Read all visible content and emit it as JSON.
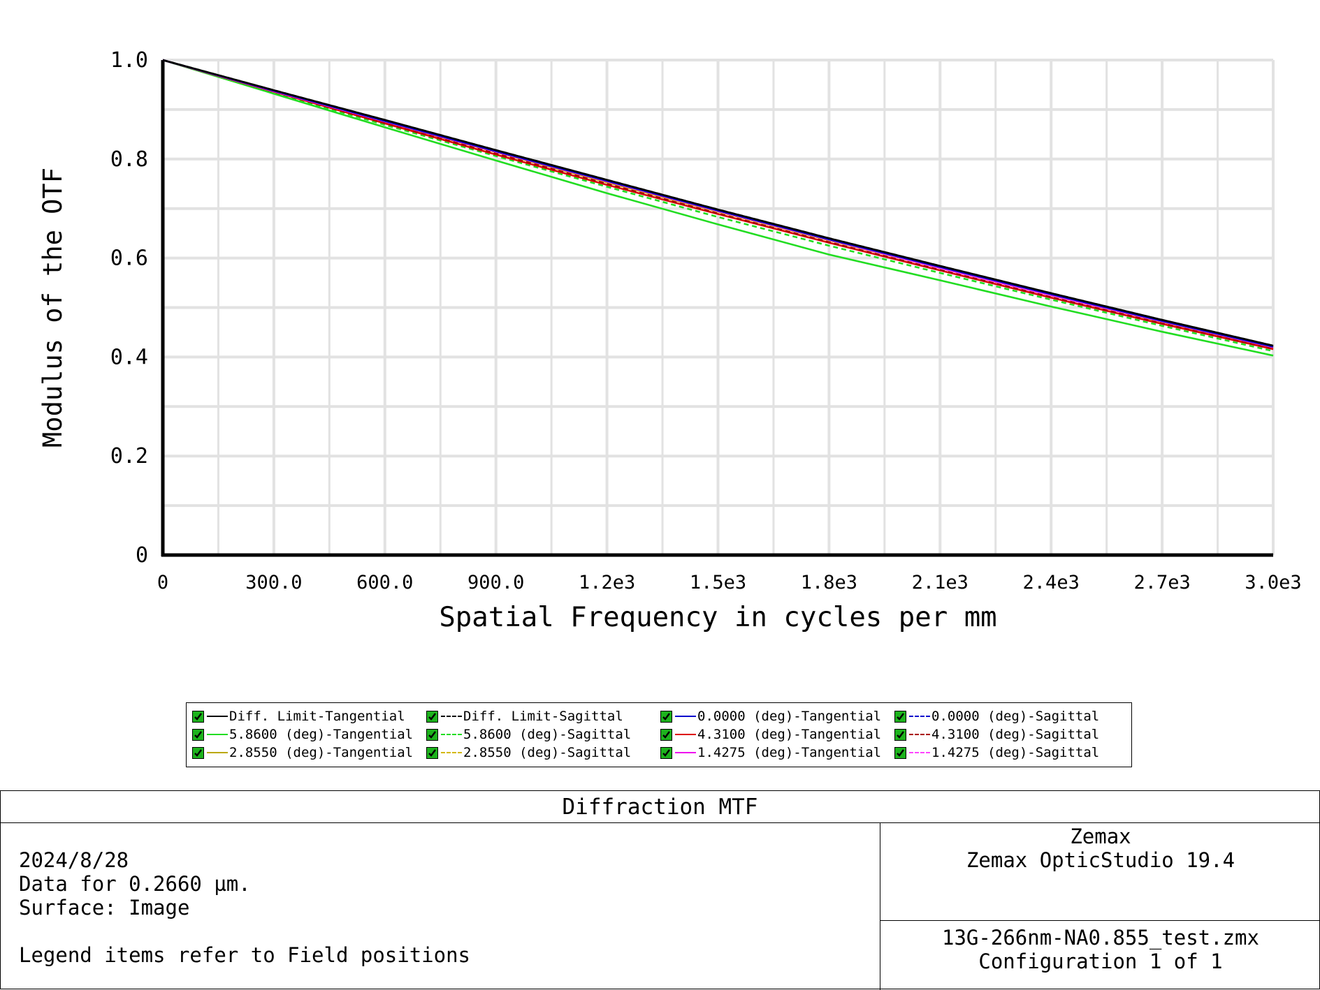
{
  "chart_data": {
    "type": "line",
    "title": "",
    "xlabel": "Spatial Frequency in cycles per mm",
    "ylabel": "Modulus of the OTF",
    "xlim": [
      0,
      3000
    ],
    "ylim": [
      0,
      1.0
    ],
    "x_ticks": [
      "0",
      "300.0",
      "600.0",
      "900.0",
      "1.2e3",
      "1.5e3",
      "1.8e3",
      "2.1e3",
      "2.4e3",
      "2.7e3",
      "3.0e3"
    ],
    "y_ticks": [
      "0",
      "0.2",
      "0.4",
      "0.6",
      "0.8",
      "1.0"
    ],
    "grid": true,
    "legend_position": "bottom",
    "x": [
      0,
      300,
      600,
      900,
      1200,
      1500,
      1800,
      2100,
      2400,
      2700,
      3000
    ],
    "series": [
      {
        "name": "Diff. Limit-Tangential",
        "color": "#000000",
        "dash": "solid",
        "values": [
          1.0,
          0.939,
          0.879,
          0.818,
          0.758,
          0.698,
          0.64,
          0.584,
          0.529,
          0.475,
          0.423
        ]
      },
      {
        "name": "Diff. Limit-Sagittal",
        "color": "#000000",
        "dash": "dashed",
        "values": [
          1.0,
          0.939,
          0.879,
          0.818,
          0.758,
          0.698,
          0.64,
          0.584,
          0.529,
          0.475,
          0.423
        ]
      },
      {
        "name": "0.0000 (deg)-Tangential",
        "color": "#0000cc",
        "dash": "solid",
        "values": [
          1.0,
          0.938,
          0.877,
          0.816,
          0.756,
          0.696,
          0.638,
          0.582,
          0.527,
          0.473,
          0.421
        ]
      },
      {
        "name": "0.0000 (deg)-Sagittal",
        "color": "#0000cc",
        "dash": "dashed",
        "values": [
          1.0,
          0.938,
          0.877,
          0.816,
          0.756,
          0.696,
          0.638,
          0.582,
          0.527,
          0.473,
          0.421
        ]
      },
      {
        "name": "5.8600 (deg)-Tangential",
        "color": "#22dd22",
        "dash": "solid",
        "values": [
          1.0,
          0.932,
          0.864,
          0.797,
          0.731,
          0.668,
          0.607,
          0.555,
          0.502,
          0.451,
          0.403
        ]
      },
      {
        "name": "5.8600 (deg)-Sagittal",
        "color": "#22dd22",
        "dash": "dashed",
        "values": [
          1.0,
          0.934,
          0.869,
          0.806,
          0.744,
          0.683,
          0.625,
          0.57,
          0.516,
          0.463,
          0.412
        ]
      },
      {
        "name": "4.3100 (deg)-Tangential",
        "color": "#dd0000",
        "dash": "solid",
        "values": [
          1.0,
          0.936,
          0.872,
          0.809,
          0.748,
          0.689,
          0.631,
          0.575,
          0.52,
          0.467,
          0.416
        ]
      },
      {
        "name": "4.3100 (deg)-Sagittal",
        "color": "#aa0000",
        "dash": "dashed",
        "values": [
          1.0,
          0.936,
          0.873,
          0.811,
          0.75,
          0.69,
          0.632,
          0.576,
          0.521,
          0.468,
          0.417
        ]
      },
      {
        "name": "2.8550 (deg)-Tangential",
        "color": "#bba800",
        "dash": "solid",
        "values": [
          1.0,
          0.937,
          0.875,
          0.814,
          0.753,
          0.694,
          0.636,
          0.58,
          0.525,
          0.471,
          0.419
        ]
      },
      {
        "name": "2.8550 (deg)-Sagittal",
        "color": "#d4b800",
        "dash": "dashed",
        "values": [
          1.0,
          0.937,
          0.876,
          0.815,
          0.754,
          0.694,
          0.637,
          0.58,
          0.525,
          0.471,
          0.419
        ]
      },
      {
        "name": "1.4275 (deg)-Tangential",
        "color": "#ee00ee",
        "dash": "solid",
        "values": [
          1.0,
          0.937,
          0.876,
          0.815,
          0.755,
          0.695,
          0.637,
          0.58,
          0.525,
          0.472,
          0.42
        ]
      },
      {
        "name": "1.4275 (deg)-Sagittal",
        "color": "#ff44ff",
        "dash": "dashed",
        "values": [
          1.0,
          0.937,
          0.876,
          0.815,
          0.755,
          0.695,
          0.637,
          0.58,
          0.525,
          0.472,
          0.42
        ]
      }
    ],
    "legend_order": [
      0,
      1,
      2,
      3,
      4,
      5,
      6,
      7,
      8,
      9,
      10,
      11
    ]
  },
  "info": {
    "title": "Diffraction MTF",
    "date": "2024/8/28",
    "data_for": "Data for 0.2660 µm.",
    "surface": "Surface: Image",
    "legend_note": "Legend items refer to Field positions",
    "company": "Zemax",
    "product": "Zemax OpticStudio 19.4",
    "file": "13G-266nm-NA0.855_test.zmx",
    "config": "Configuration 1 of 1"
  }
}
